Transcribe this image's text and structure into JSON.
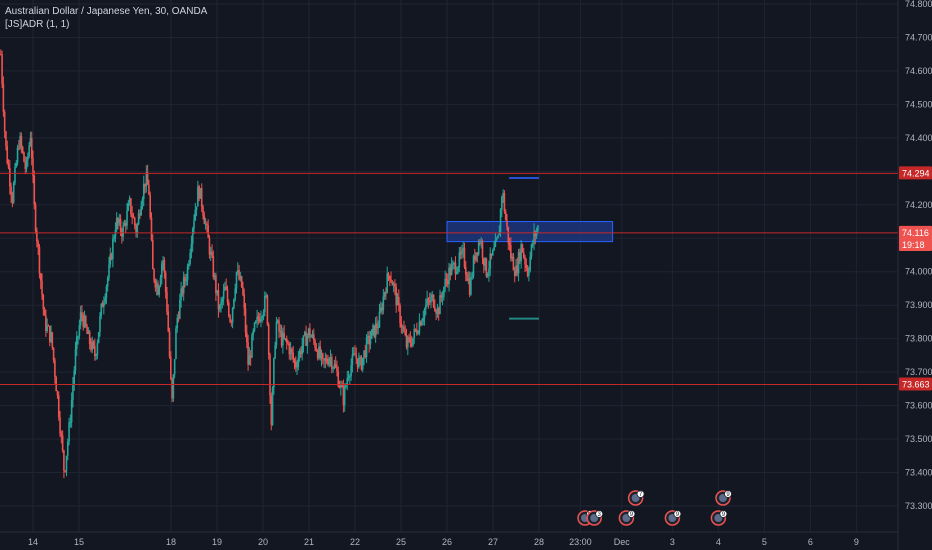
{
  "legend": {
    "symbol_line": "Australian Dollar / Japanese Yen, 30, OANDA",
    "indicator_line": "[JS]ADR (1, 1)"
  },
  "colors": {
    "background": "#131722",
    "grid": "#1f2433",
    "up": "#26a69a",
    "down": "#ef5350",
    "level_line": "#c62828",
    "zone_fill": "#1e3a8a",
    "zone_border": "#2962ff",
    "current_tag": "#ef5350",
    "axis_text": "#b2b5be"
  },
  "chart_data": {
    "type": "candlestick",
    "title": "Australian Dollar / Japanese Yen, 30, OANDA",
    "indicator": "[JS]ADR (1, 1)",
    "y_axis": {
      "ylim": [
        73.2,
        74.8
      ],
      "ticks": [
        "74.800",
        "74.700",
        "74.600",
        "74.500",
        "74.400",
        "74.300",
        "74.200",
        "74.100",
        "74.000",
        "73.900",
        "73.800",
        "73.700",
        "73.600",
        "73.500",
        "73.400",
        "73.300"
      ]
    },
    "x_axis": {
      "range_days": [
        13.0,
        39.85
      ],
      "ticks": [
        {
          "day": 13.7,
          "label": "14"
        },
        {
          "day": 14.7,
          "label": "15"
        },
        {
          "day": 16.7,
          "label": "18"
        },
        {
          "day": 17.7,
          "label": "19"
        },
        {
          "day": 18.7,
          "label": "20"
        },
        {
          "day": 19.7,
          "label": "21"
        },
        {
          "day": 20.7,
          "label": "22"
        },
        {
          "day": 21.7,
          "label": "25"
        },
        {
          "day": 22.7,
          "label": "26"
        },
        {
          "day": 23.7,
          "label": "27"
        },
        {
          "day": 24.7,
          "label": "28"
        },
        {
          "day": 25.6,
          "label": "23:00"
        },
        {
          "day": 26.5,
          "label": "Dec"
        },
        {
          "day": 27.6,
          "label": "3"
        },
        {
          "day": 28.6,
          "label": "4"
        },
        {
          "day": 29.6,
          "label": "5"
        },
        {
          "day": 30.6,
          "label": "6"
        },
        {
          "day": 31.6,
          "label": "9"
        }
      ]
    },
    "anchors": [
      [
        13.0,
        74.65
      ],
      [
        13.1,
        74.38
      ],
      [
        13.25,
        74.22
      ],
      [
        13.4,
        74.4
      ],
      [
        13.55,
        74.3
      ],
      [
        13.65,
        74.42
      ],
      [
        13.72,
        74.2
      ],
      [
        13.82,
        74.05
      ],
      [
        13.95,
        73.85
      ],
      [
        14.1,
        73.8
      ],
      [
        14.25,
        73.6
      ],
      [
        14.38,
        73.4
      ],
      [
        14.5,
        73.55
      ],
      [
        14.62,
        73.75
      ],
      [
        14.75,
        73.88
      ],
      [
        14.9,
        73.8
      ],
      [
        15.05,
        73.75
      ],
      [
        15.2,
        73.9
      ],
      [
        15.35,
        74.0
      ],
      [
        15.5,
        74.15
      ],
      [
        15.65,
        74.12
      ],
      [
        15.8,
        74.2
      ],
      [
        15.95,
        74.12
      ],
      [
        16.05,
        74.22
      ],
      [
        16.15,
        74.28
      ],
      [
        16.22,
        74.24
      ],
      [
        16.3,
        74.0
      ],
      [
        16.42,
        73.95
      ],
      [
        16.52,
        74.05
      ],
      [
        16.62,
        73.88
      ],
      [
        16.72,
        73.6
      ],
      [
        16.82,
        73.85
      ],
      [
        16.95,
        73.95
      ],
      [
        17.05,
        74.0
      ],
      [
        17.18,
        74.15
      ],
      [
        17.3,
        74.25
      ],
      [
        17.38,
        74.2
      ],
      [
        17.5,
        74.1
      ],
      [
        17.62,
        74.0
      ],
      [
        17.75,
        73.88
      ],
      [
        17.88,
        73.95
      ],
      [
        18.0,
        73.85
      ],
      [
        18.12,
        74.0
      ],
      [
        18.25,
        73.95
      ],
      [
        18.38,
        73.72
      ],
      [
        18.5,
        73.82
      ],
      [
        18.65,
        73.88
      ],
      [
        18.78,
        73.92
      ],
      [
        18.88,
        73.55
      ],
      [
        18.98,
        73.85
      ],
      [
        19.1,
        73.8
      ],
      [
        19.25,
        73.78
      ],
      [
        19.4,
        73.72
      ],
      [
        19.55,
        73.78
      ],
      [
        19.7,
        73.82
      ],
      [
        19.85,
        73.78
      ],
      [
        20.0,
        73.72
      ],
      [
        20.15,
        73.75
      ],
      [
        20.3,
        73.7
      ],
      [
        20.45,
        73.62
      ],
      [
        20.55,
        73.7
      ],
      [
        20.7,
        73.75
      ],
      [
        20.82,
        73.72
      ],
      [
        20.95,
        73.78
      ],
      [
        21.1,
        73.82
      ],
      [
        21.22,
        73.85
      ],
      [
        21.35,
        73.95
      ],
      [
        21.45,
        74.0
      ],
      [
        21.55,
        73.95
      ],
      [
        21.7,
        73.85
      ],
      [
        21.82,
        73.78
      ],
      [
        21.95,
        73.8
      ],
      [
        22.1,
        73.85
      ],
      [
        22.25,
        73.9
      ],
      [
        22.4,
        73.92
      ],
      [
        22.5,
        73.88
      ],
      [
        22.62,
        73.95
      ],
      [
        22.75,
        74.0
      ],
      [
        22.9,
        74.02
      ],
      [
        23.05,
        74.05
      ],
      [
        23.2,
        73.95
      ],
      [
        23.3,
        74.05
      ],
      [
        23.42,
        74.1
      ],
      [
        23.55,
        74.0
      ],
      [
        23.7,
        74.05
      ],
      [
        23.82,
        74.1
      ],
      [
        23.9,
        74.25
      ],
      [
        23.98,
        74.15
      ],
      [
        24.08,
        74.05
      ],
      [
        24.2,
        74.0
      ],
      [
        24.32,
        74.08
      ],
      [
        24.45,
        74.0
      ],
      [
        24.58,
        74.1
      ],
      [
        24.7,
        74.14
      ]
    ],
    "levels": [
      74.294,
      74.116,
      73.663
    ],
    "zone": {
      "day_start": 22.7,
      "day_end": 26.3,
      "y_top": 74.15,
      "y_bottom": 74.09
    },
    "small_marks": [
      {
        "day_start": 24.05,
        "day_end": 24.7,
        "y": 74.28,
        "color": "#2962ff"
      },
      {
        "day_start": 24.05,
        "day_end": 24.7,
        "y": 73.86,
        "color": "#26a69a"
      }
    ],
    "price_tags": [
      {
        "label": "74.294",
        "value": 74.294,
        "color": "#c62828"
      },
      {
        "label": "74.116",
        "value": 74.116,
        "color": "#ef5350"
      },
      {
        "label": "19:18",
        "value": 74.08,
        "color": "#ef5350"
      },
      {
        "label": "73.663",
        "value": 73.663,
        "color": "#c62828"
      }
    ],
    "events": [
      {
        "day": 25.7,
        "row": "bottom",
        "label": "10"
      },
      {
        "day": 25.9,
        "row": "bottom",
        "label": "3"
      },
      {
        "day": 26.6,
        "row": "bottom",
        "label": "9"
      },
      {
        "day": 26.8,
        "row": "top",
        "label": "7"
      },
      {
        "day": 27.6,
        "row": "bottom",
        "label": "9"
      },
      {
        "day": 28.6,
        "row": "bottom",
        "label": "9"
      },
      {
        "day": 28.7,
        "row": "top",
        "label": "9"
      }
    ]
  }
}
